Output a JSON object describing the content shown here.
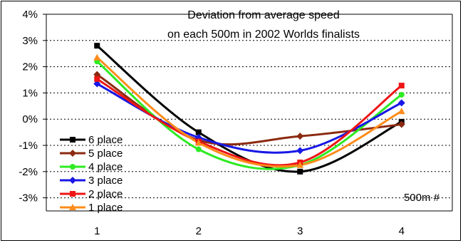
{
  "chart_data": {
    "type": "line",
    "title_lines": [
      "Deviation from average speed",
      "on each 500m in 2002 Worlds finalists"
    ],
    "xlabel": "500m #",
    "ylabel": "",
    "x": [
      1,
      2,
      3,
      4
    ],
    "x_tick_labels": [
      "1",
      "2",
      "3",
      "4"
    ],
    "ylim": [
      -0.035,
      0.04
    ],
    "y_ticks": [
      -0.03,
      -0.02,
      -0.01,
      0,
      0.01,
      0.02,
      0.03,
      0.04
    ],
    "y_tick_labels": [
      "-3%",
      "-2%",
      "-1%",
      "0%",
      "1%",
      "2%",
      "3%",
      "4%"
    ],
    "grid": "horizontal dashed",
    "legend_position": "lower-left",
    "smoothed": true,
    "series": [
      {
        "name": "6 place",
        "color": "#000000",
        "marker": "square",
        "values": [
          0.028,
          -0.005,
          -0.02,
          -0.001
        ]
      },
      {
        "name": "5 place",
        "color": "#8B2A10",
        "marker": "diamond",
        "values": [
          0.017,
          -0.008,
          -0.0065,
          -0.002
        ]
      },
      {
        "name": "4 place",
        "color": "#2EEB22",
        "marker": "circle",
        "values": [
          0.022,
          -0.0115,
          -0.0175,
          0.0093
        ]
      },
      {
        "name": "3 place",
        "color": "#1717E6",
        "marker": "diamond",
        "values": [
          0.0135,
          -0.007,
          -0.012,
          0.0062
        ]
      },
      {
        "name": "2 place",
        "color": "#EE1515",
        "marker": "square",
        "values": [
          0.0153,
          -0.0085,
          -0.0165,
          0.0128
        ]
      },
      {
        "name": "1 place",
        "color": "#FF8C1A",
        "marker": "triangle",
        "values": [
          0.0235,
          -0.009,
          -0.0175,
          0.003
        ]
      }
    ]
  }
}
